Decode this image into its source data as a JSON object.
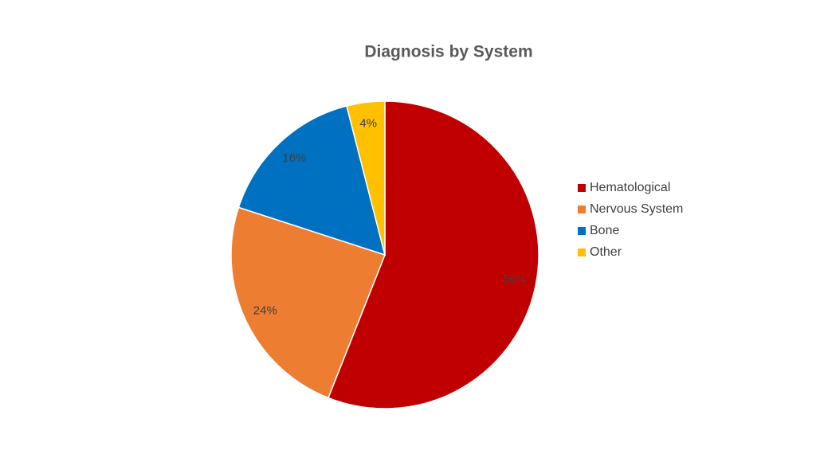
{
  "chart_data": {
    "type": "pie",
    "title": "Diagnosis by System",
    "categories": [
      "Hematological",
      "Nervous System",
      "Bone",
      "Other"
    ],
    "values": [
      56,
      24,
      16,
      4
    ],
    "value_labels": [
      "56%",
      "24%",
      "16%",
      "4%"
    ],
    "colors": [
      "#c00000",
      "#ed7d31",
      "#0070c0",
      "#ffc000"
    ],
    "legend": "right"
  }
}
